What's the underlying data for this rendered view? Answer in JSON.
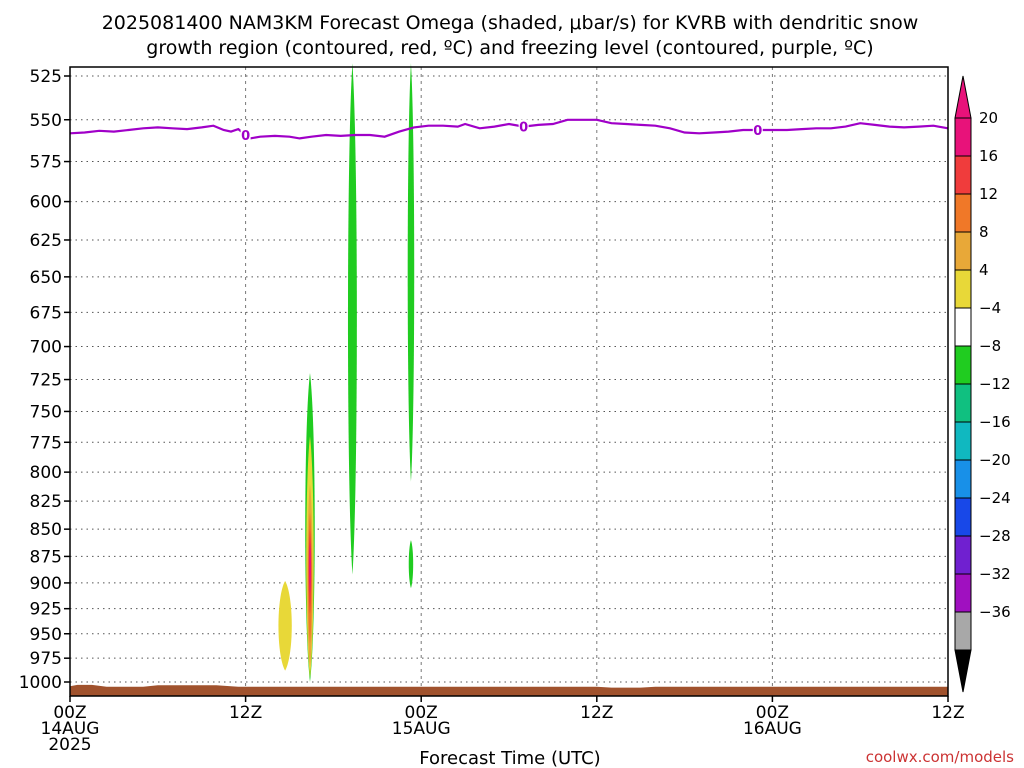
{
  "chart_data": {
    "type": "heatmap",
    "title_lines": [
      "2025081400 NAM3KM Forecast Omega (shaded, μbar/s) for KVRB with dendritic snow",
      "growth region (contoured, red, ºC) and freezing level (contoured, purple, ºC)"
    ],
    "xlabel": "Forecast Time (UTC)",
    "x_ticks": [
      {
        "hour": 0,
        "lines": [
          "00Z",
          "14AUG",
          "2025"
        ]
      },
      {
        "hour": 12,
        "lines": [
          "12Z"
        ]
      },
      {
        "hour": 24,
        "lines": [
          "00Z",
          "15AUG"
        ]
      },
      {
        "hour": 36,
        "lines": [
          "12Z"
        ]
      },
      {
        "hour": 48,
        "lines": [
          "00Z",
          "16AUG"
        ]
      },
      {
        "hour": 60,
        "lines": [
          "12Z"
        ]
      }
    ],
    "xlim_hours": [
      0,
      60
    ],
    "y_ticks_hpa": [
      525,
      550,
      575,
      600,
      625,
      650,
      675,
      700,
      725,
      750,
      775,
      800,
      825,
      850,
      875,
      900,
      925,
      950,
      975,
      1000
    ],
    "ylim_hpa": [
      1015,
      520
    ],
    "y_scale": "log",
    "grid": true,
    "colorbar": {
      "labels": [
        "20",
        "16",
        "12",
        "8",
        "4",
        "−4",
        "−8",
        "−12",
        "−16",
        "−20",
        "−24",
        "−28",
        "−32",
        "−36"
      ],
      "colors": [
        "#e8127a",
        "#f03c3c",
        "#f07828",
        "#e8a838",
        "#e8d838",
        "#ffffff",
        "#20cc20",
        "#10c080",
        "#10b8c0",
        "#1890e8",
        "#1848e8",
        "#7020d0",
        "#a010c0",
        "#a8a8a8"
      ],
      "top_arrow": "#e8127a",
      "bottom_arrow": "#000000"
    },
    "freezing_level": {
      "color": "#a000c8",
      "label": "0",
      "label_hours": [
        12.0,
        31.0,
        47.0
      ],
      "points": [
        [
          0,
          558
        ],
        [
          1,
          557.5
        ],
        [
          2,
          556.5
        ],
        [
          3,
          557
        ],
        [
          4,
          556
        ],
        [
          5,
          555
        ],
        [
          6,
          554.5
        ],
        [
          7,
          555
        ],
        [
          8,
          555.5
        ],
        [
          9,
          554.5
        ],
        [
          9.8,
          553.5
        ],
        [
          10.5,
          556
        ],
        [
          11,
          557
        ],
        [
          11.5,
          555.5
        ],
        [
          12.3,
          561
        ],
        [
          13,
          560
        ],
        [
          14,
          559.5
        ],
        [
          15,
          560
        ],
        [
          15.7,
          561
        ],
        [
          16.5,
          560
        ],
        [
          17.5,
          559
        ],
        [
          18.5,
          559.5
        ],
        [
          19.5,
          559
        ],
        [
          20.5,
          559
        ],
        [
          21.5,
          560
        ],
        [
          22.5,
          557
        ],
        [
          23.5,
          554.5
        ],
        [
          24.5,
          553.5
        ],
        [
          25.5,
          553.5
        ],
        [
          26.5,
          554
        ],
        [
          27,
          552.5
        ],
        [
          28,
          555
        ],
        [
          29,
          554
        ],
        [
          30,
          552.5
        ],
        [
          31,
          554
        ],
        [
          32,
          553
        ],
        [
          33,
          552.5
        ],
        [
          34,
          550
        ],
        [
          35,
          550
        ],
        [
          36,
          550
        ],
        [
          37,
          552
        ],
        [
          38,
          552.5
        ],
        [
          39,
          553
        ],
        [
          40,
          553.5
        ],
        [
          41,
          555
        ],
        [
          42,
          557.5
        ],
        [
          43,
          558
        ],
        [
          44,
          557.5
        ],
        [
          45,
          557
        ],
        [
          46,
          556
        ],
        [
          47,
          556
        ],
        [
          48,
          556
        ],
        [
          49,
          556
        ],
        [
          50,
          555.5
        ],
        [
          51,
          555
        ],
        [
          52,
          555
        ],
        [
          53,
          554
        ],
        [
          54,
          552
        ],
        [
          55,
          553
        ],
        [
          56,
          554
        ],
        [
          57,
          554.5
        ],
        [
          58,
          554
        ],
        [
          59,
          553.5
        ],
        [
          60,
          555
        ]
      ]
    },
    "omega_regions": [
      {
        "value": 4,
        "x_center": 14.7,
        "x_half_width": 0.45,
        "p_top": 898,
        "p_bottom": 988
      },
      {
        "value": -4,
        "x_center": 16.4,
        "x_half_width": 0.32,
        "p_top": 720,
        "p_bottom": 1000
      },
      {
        "value": 4,
        "x_center": 16.4,
        "x_half_width": 0.25,
        "p_top": 770,
        "p_bottom": 995
      },
      {
        "value": 8,
        "x_center": 16.4,
        "x_half_width": 0.18,
        "p_top": 810,
        "p_bottom": 985
      },
      {
        "value": 12,
        "x_center": 16.4,
        "x_half_width": 0.13,
        "p_top": 835,
        "p_bottom": 960
      },
      {
        "value": 16,
        "x_center": 16.4,
        "x_half_width": 0.09,
        "p_top": 850,
        "p_bottom": 930
      },
      {
        "value": 20,
        "x_center": 16.4,
        "x_half_width": 0.06,
        "p_top": 862,
        "p_bottom": 910
      },
      {
        "value": -4,
        "x_center": 19.3,
        "x_half_width": 0.3,
        "p_top": 518,
        "p_bottom": 892
      },
      {
        "value": -4,
        "x_center": 23.3,
        "x_half_width": 0.22,
        "p_top": 518,
        "p_bottom": 808
      },
      {
        "value": -4,
        "x_center": 23.3,
        "x_half_width": 0.15,
        "p_top": 860,
        "p_bottom": 905
      }
    ],
    "terrain": {
      "color": "#a0522d",
      "points": [
        [
          0,
          1004.5
        ],
        [
          0.5,
          1003
        ],
        [
          1.5,
          1003
        ],
        [
          2.5,
          1005
        ],
        [
          5,
          1005
        ],
        [
          6,
          1003.5
        ],
        [
          10,
          1003.5
        ],
        [
          11.5,
          1005
        ],
        [
          24,
          1005
        ],
        [
          36,
          1005
        ],
        [
          37,
          1006
        ],
        [
          39,
          1006
        ],
        [
          40,
          1005
        ],
        [
          60,
          1005
        ]
      ]
    },
    "credit": "coolwx.com/models"
  }
}
